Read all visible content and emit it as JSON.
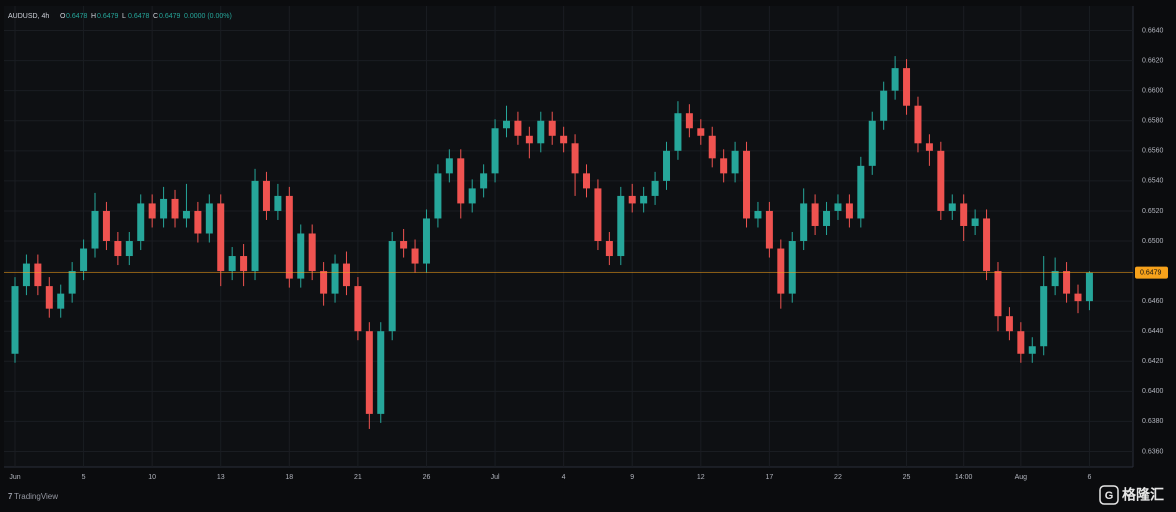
{
  "chart_data": {
    "type": "candlestick",
    "symbol": "AUDUSD, 4h",
    "header": [
      [
        "O",
        0.6478
      ],
      [
        "H",
        0.6479
      ],
      [
        "L",
        0.6478
      ],
      [
        "C",
        0.6479
      ]
    ],
    "change": "0.0000 (0.00%)",
    "branding": "TradingView",
    "watermark": "格隆汇",
    "categories": [
      "Jun",
      null,
      null,
      null,
      null,
      null,
      "5",
      null,
      null,
      null,
      null,
      null,
      "10",
      null,
      null,
      null,
      null,
      null,
      "13",
      null,
      null,
      null,
      null,
      null,
      "18",
      null,
      null,
      null,
      null,
      null,
      "21",
      null,
      null,
      null,
      null,
      null,
      "26",
      null,
      null,
      null,
      null,
      null,
      "Jul",
      null,
      null,
      null,
      null,
      null,
      "4",
      null,
      null,
      null,
      null,
      null,
      "9",
      null,
      null,
      null,
      null,
      null,
      "12",
      null,
      null,
      null,
      null,
      null,
      "17",
      null,
      null,
      null,
      null,
      null,
      "22",
      null,
      null,
      null,
      null,
      null,
      "25",
      null,
      null,
      null,
      null,
      "14:00",
      null,
      null,
      null,
      null,
      "Aug",
      null,
      null,
      null,
      null,
      null,
      "6"
    ],
    "open": [
      0.6425,
      0.647,
      0.6485,
      0.647,
      0.6455,
      0.6465,
      0.648,
      0.6495,
      0.652,
      0.65,
      0.649,
      0.65,
      0.6525,
      0.6515,
      0.6528,
      0.6515,
      0.652,
      0.6505,
      0.6525,
      0.648,
      0.649,
      0.648,
      0.654,
      0.652,
      0.653,
      0.6475,
      0.6505,
      0.648,
      0.6465,
      0.6485,
      0.647,
      0.644,
      0.6385,
      0.644,
      0.65,
      0.6495,
      0.6485,
      0.6515,
      0.6545,
      0.6555,
      0.6525,
      0.6535,
      0.6545,
      0.6575,
      0.658,
      0.657,
      0.6565,
      0.658,
      0.657,
      0.6565,
      0.6545,
      0.6535,
      0.65,
      0.649,
      0.653,
      0.6525,
      0.653,
      0.654,
      0.656,
      0.6585,
      0.6575,
      0.657,
      0.6555,
      0.6545,
      0.656,
      0.6515,
      0.652,
      0.6495,
      0.6465,
      0.65,
      0.6525,
      0.651,
      0.652,
      0.6525,
      0.6515,
      0.655,
      0.658,
      0.66,
      0.6615,
      0.659,
      0.6565,
      0.656,
      0.652,
      0.6525,
      0.651,
      0.6515,
      0.648,
      0.645,
      0.644,
      0.6425,
      0.643,
      0.647,
      0.648,
      0.6465,
      0.646
    ],
    "high": [
      0.6476,
      0.6491,
      0.6491,
      0.6476,
      0.6471,
      0.6486,
      0.6501,
      0.6532,
      0.6526,
      0.6506,
      0.6506,
      0.6531,
      0.6531,
      0.6536,
      0.6534,
      0.6538,
      0.6526,
      0.6531,
      0.6531,
      0.6496,
      0.6498,
      0.6548,
      0.6546,
      0.6538,
      0.6536,
      0.6511,
      0.6511,
      0.6486,
      0.6491,
      0.6493,
      0.6476,
      0.6446,
      0.6446,
      0.6506,
      0.6508,
      0.6501,
      0.6521,
      0.6551,
      0.6561,
      0.6561,
      0.6541,
      0.6551,
      0.6581,
      0.659,
      0.6586,
      0.6576,
      0.6586,
      0.6586,
      0.6576,
      0.6571,
      0.6551,
      0.6541,
      0.6506,
      0.6536,
      0.6538,
      0.6536,
      0.6546,
      0.6566,
      0.6593,
      0.6591,
      0.6581,
      0.6576,
      0.6561,
      0.6566,
      0.6566,
      0.6526,
      0.6526,
      0.6501,
      0.6506,
      0.6535,
      0.6531,
      0.6526,
      0.6531,
      0.6531,
      0.6556,
      0.6586,
      0.6606,
      0.6623,
      0.6621,
      0.6596,
      0.6571,
      0.6566,
      0.6531,
      0.6531,
      0.6521,
      0.6521,
      0.6486,
      0.6456,
      0.6446,
      0.6436,
      0.649,
      0.6489,
      0.6486,
      0.6471,
      0.648
    ],
    "low": [
      0.6419,
      0.6464,
      0.6464,
      0.6449,
      0.6449,
      0.6459,
      0.6474,
      0.6489,
      0.6494,
      0.6484,
      0.6484,
      0.6494,
      0.6509,
      0.6509,
      0.6509,
      0.6509,
      0.6499,
      0.6499,
      0.647,
      0.6474,
      0.647,
      0.6474,
      0.6514,
      0.6514,
      0.6469,
      0.6469,
      0.6474,
      0.6457,
      0.6459,
      0.6464,
      0.6434,
      0.6375,
      0.6379,
      0.6434,
      0.6489,
      0.6479,
      0.6479,
      0.6509,
      0.6539,
      0.6515,
      0.6519,
      0.6529,
      0.6539,
      0.6569,
      0.6564,
      0.6555,
      0.6559,
      0.6564,
      0.6559,
      0.653,
      0.6529,
      0.6494,
      0.6484,
      0.6484,
      0.6519,
      0.6519,
      0.6524,
      0.6534,
      0.6554,
      0.6569,
      0.6564,
      0.6549,
      0.6539,
      0.6539,
      0.6509,
      0.6509,
      0.6489,
      0.6455,
      0.6459,
      0.6494,
      0.6504,
      0.6504,
      0.6514,
      0.6509,
      0.6509,
      0.6544,
      0.6574,
      0.6594,
      0.6584,
      0.6559,
      0.655,
      0.6514,
      0.6514,
      0.65,
      0.6504,
      0.6474,
      0.644,
      0.6434,
      0.6419,
      0.6419,
      0.6424,
      0.6464,
      0.6459,
      0.6452,
      0.6454
    ],
    "close": [
      0.647,
      0.6485,
      0.647,
      0.6455,
      0.6465,
      0.648,
      0.6495,
      0.652,
      0.65,
      0.649,
      0.65,
      0.6525,
      0.6515,
      0.6528,
      0.6515,
      0.652,
      0.6505,
      0.6525,
      0.648,
      0.649,
      0.648,
      0.654,
      0.652,
      0.653,
      0.6475,
      0.6505,
      0.648,
      0.6465,
      0.6485,
      0.647,
      0.644,
      0.6385,
      0.644,
      0.65,
      0.6495,
      0.6485,
      0.6515,
      0.6545,
      0.6555,
      0.6525,
      0.6535,
      0.6545,
      0.6575,
      0.658,
      0.657,
      0.6565,
      0.658,
      0.657,
      0.6565,
      0.6545,
      0.6535,
      0.65,
      0.649,
      0.653,
      0.6525,
      0.653,
      0.654,
      0.656,
      0.6585,
      0.6575,
      0.657,
      0.6555,
      0.6545,
      0.656,
      0.6515,
      0.652,
      0.6495,
      0.6465,
      0.65,
      0.6525,
      0.651,
      0.652,
      0.6525,
      0.6515,
      0.655,
      0.658,
      0.66,
      0.6615,
      0.659,
      0.6565,
      0.656,
      0.652,
      0.6525,
      0.651,
      0.6515,
      0.648,
      0.645,
      0.644,
      0.6425,
      0.643,
      0.647,
      0.648,
      0.6465,
      0.646,
      0.6479
    ],
    "up_color": "#26a69a",
    "down_color": "#ef5350",
    "last_price_color": "#f7a21b",
    "ylim": [
      0.6351,
      0.6655
    ],
    "yticks": [
      {
        "value": 0.636,
        "label": "0.6360"
      },
      {
        "value": 0.638,
        "label": "0.6380"
      },
      {
        "value": 0.64,
        "label": "0.6400"
      },
      {
        "value": 0.642,
        "label": "0.6420"
      },
      {
        "value": 0.644,
        "label": "0.6440"
      },
      {
        "value": 0.646,
        "label": "0.6460"
      },
      {
        "value": 0.648,
        "label": "0.6480"
      },
      {
        "value": 0.65,
        "label": "0.6500"
      },
      {
        "value": 0.652,
        "label": "0.6520"
      },
      {
        "value": 0.654,
        "label": "0.6540"
      },
      {
        "value": 0.656,
        "label": "0.6560"
      },
      {
        "value": 0.658,
        "label": "0.6580"
      },
      {
        "value": 0.66,
        "label": "0.6600"
      },
      {
        "value": 0.662,
        "label": "0.6620"
      },
      {
        "value": 0.664,
        "label": "0.6640"
      }
    ],
    "grid": true
  }
}
